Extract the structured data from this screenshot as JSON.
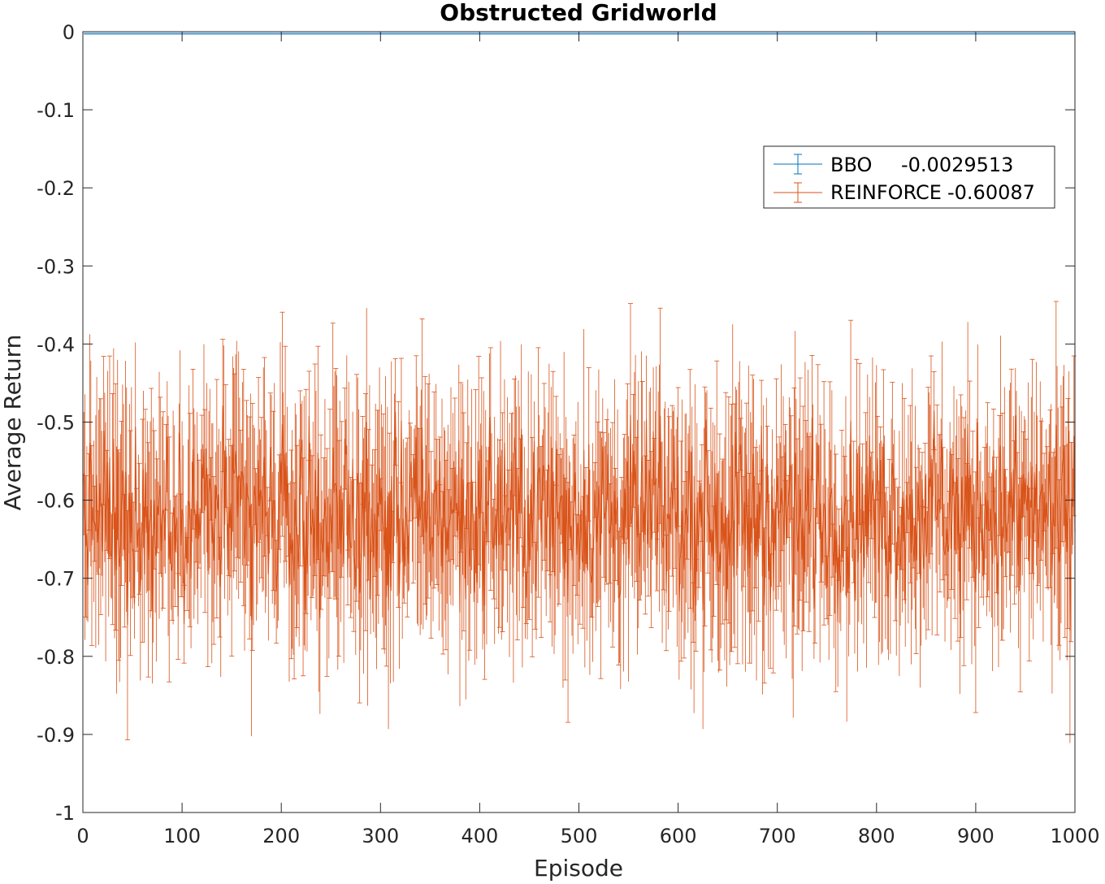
{
  "chart_data": {
    "type": "line",
    "title": "Obstructed Gridworld",
    "xlabel": "Episode",
    "ylabel": "Average Return",
    "xlim": [
      0,
      1000
    ],
    "ylim": [
      -1,
      0
    ],
    "xticks": [
      "0",
      "100",
      "200",
      "300",
      "400",
      "500",
      "600",
      "700",
      "800",
      "900",
      "1000"
    ],
    "yticks": [
      "0",
      "-0.1",
      "-0.2",
      "-0.3",
      "-0.4",
      "-0.5",
      "-0.6",
      "-0.7",
      "-0.8",
      "-0.9",
      "-1"
    ],
    "grid": false,
    "legend_position": "top-right",
    "error_bars": true,
    "series": [
      {
        "name": "BBO",
        "legend_value": "-0.0029513",
        "color": "#0072bd",
        "mean": -0.0029513,
        "error": 0.001,
        "x_range": [
          1,
          1000
        ]
      },
      {
        "name": "REINFORCE",
        "legend_value": "-0.60087",
        "color": "#d95319",
        "mean": -0.60087,
        "mean_range": [
          -0.78,
          -0.46
        ],
        "error_range": [
          0.03,
          0.16
        ],
        "x_range": [
          1,
          1000
        ]
      }
    ]
  }
}
